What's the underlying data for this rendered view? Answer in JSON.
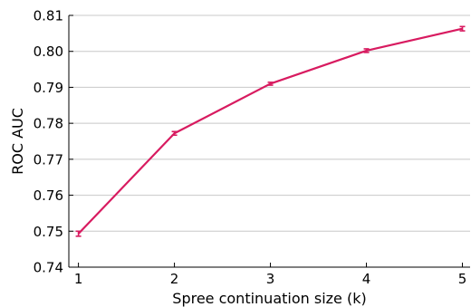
{
  "chart_data": {
    "type": "line",
    "title": "",
    "xlabel": "Spree continuation size (k)",
    "ylabel": "ROC AUC",
    "x": [
      1,
      2,
      3,
      4,
      5
    ],
    "x_ticks": [
      "1",
      "2",
      "3",
      "4",
      "5"
    ],
    "xlim": [
      0.9,
      5.08
    ],
    "ylim": [
      0.74,
      0.81
    ],
    "y_ticks": [
      "0.74",
      "0.75",
      "0.76",
      "0.77",
      "0.78",
      "0.79",
      "0.80",
      "0.81"
    ],
    "grid": "horizontal",
    "legend": "none",
    "series": [
      {
        "values": [
          0.7493,
          0.7772,
          0.791,
          0.8002,
          0.8063
        ],
        "errors": [
          0.0007,
          0.0005,
          0.0004,
          0.0005,
          0.0006
        ],
        "color": "#d81b60"
      }
    ]
  }
}
